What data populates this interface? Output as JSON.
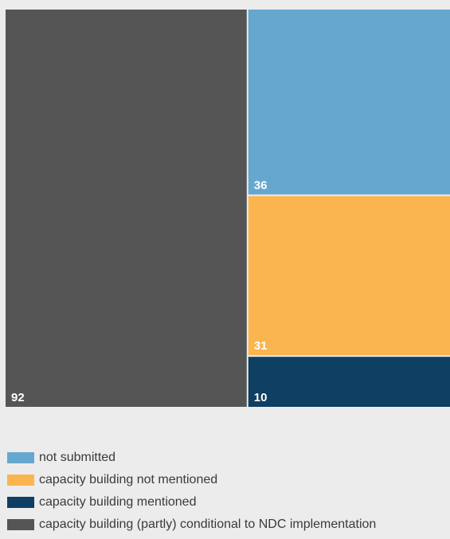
{
  "chart_data": {
    "type": "treemap",
    "title": "",
    "items": [
      {
        "name": "capacity building (partly) conditional to NDC implementation",
        "value": 92,
        "color": "#555556"
      },
      {
        "name": "not submitted",
        "value": 36,
        "color": "#66a7cf"
      },
      {
        "name": "capacity building not mentioned",
        "value": 31,
        "color": "#fbb54f"
      },
      {
        "name": "capacity building mentioned",
        "value": 10,
        "color": "#0f3f62"
      }
    ],
    "legend_position": "bottom-left",
    "legend": [
      {
        "label": "not submitted",
        "color": "#66a7cf"
      },
      {
        "label": "capacity building not mentioned",
        "color": "#fbb54f"
      },
      {
        "label": "capacity building mentioned",
        "color": "#0f3f62"
      },
      {
        "label": "capacity building (partly) conditional to NDC implementation",
        "color": "#555556"
      }
    ]
  }
}
